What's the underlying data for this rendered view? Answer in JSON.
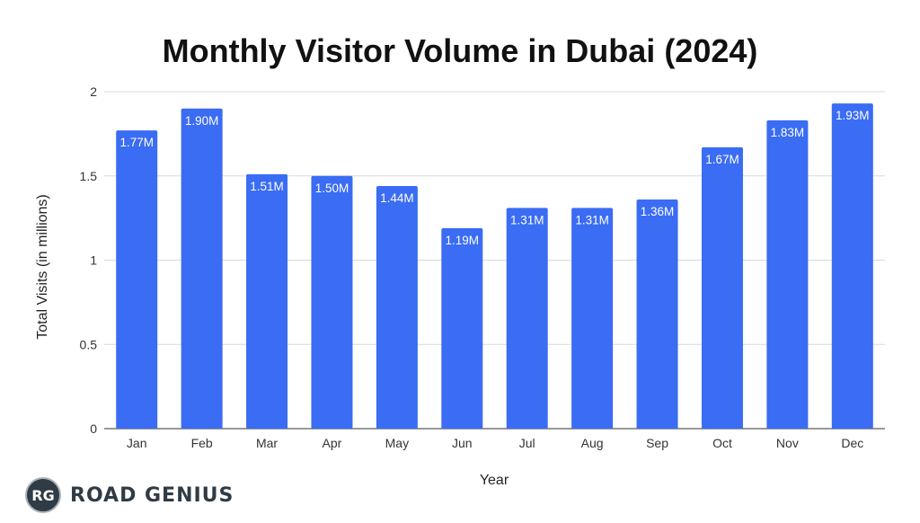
{
  "chart_data": {
    "type": "bar",
    "title": "Monthly Visitor Volume in Dubai (2024)",
    "xlabel": "Year",
    "ylabel": "Total Visits (in millions)",
    "categories": [
      "Jan",
      "Feb",
      "Mar",
      "Apr",
      "May",
      "Jun",
      "Jul",
      "Aug",
      "Sep",
      "Oct",
      "Nov",
      "Dec"
    ],
    "values": [
      1.77,
      1.9,
      1.51,
      1.5,
      1.44,
      1.19,
      1.31,
      1.31,
      1.36,
      1.67,
      1.83,
      1.93
    ],
    "data_labels": [
      "1.77M",
      "1.90M",
      "1.51M",
      "1.50M",
      "1.44M",
      "1.19M",
      "1.31M",
      "1.31M",
      "1.36M",
      "1.67M",
      "1.83M",
      "1.93M"
    ],
    "yticks": [
      0,
      0.5,
      1,
      1.5,
      2
    ],
    "ytick_labels": [
      "0",
      "0.5",
      "1",
      "1.5",
      "2"
    ],
    "ylim": [
      0,
      2
    ],
    "grid": true,
    "legend": "none",
    "bar_color": "#3a6cf4"
  },
  "logo": {
    "badge": "RG",
    "text": "ROAD GENIUS"
  }
}
